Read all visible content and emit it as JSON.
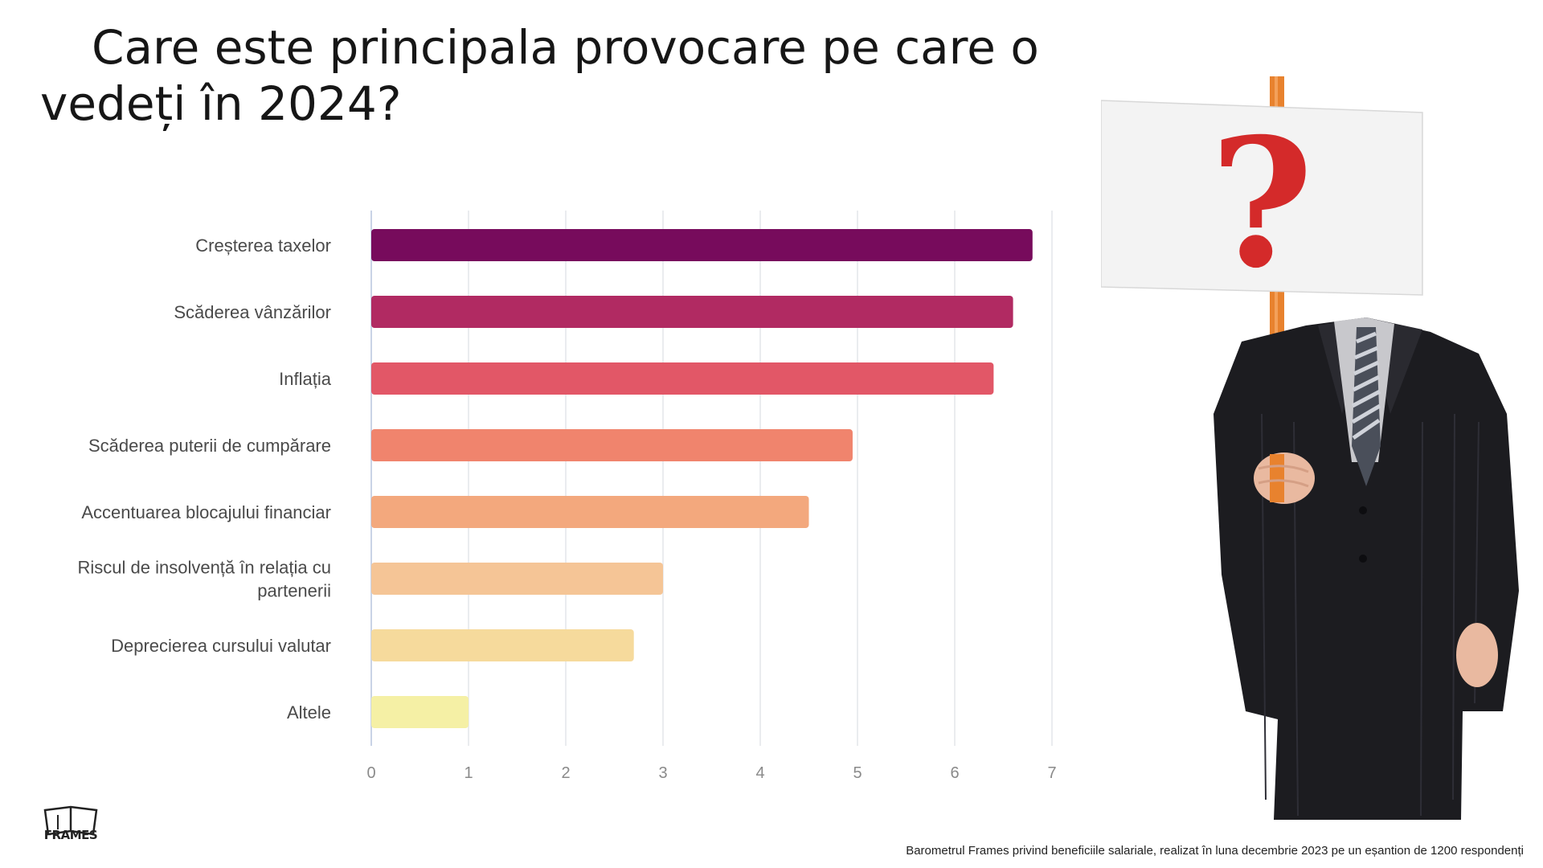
{
  "title": "Care este principala provocare pe care o vedeți în 2024?",
  "source_note": "Barometrul Frames privind beneficiile salariale, realizat în luna decembrie 2023 pe un eșantion de 1200 respondenți",
  "logo_text": "FRAMES",
  "illustration": {
    "description_icon": "man-holding-question-mark-sign",
    "sign_glyph": "?"
  },
  "colors": {
    "bars": [
      "#770b5c",
      "#b12a62",
      "#e25767",
      "#f0846d",
      "#f3a87d",
      "#f5c596",
      "#f6da9c",
      "#f5f0a5"
    ],
    "sign_question": "#d42a2a"
  },
  "chart_data": {
    "type": "bar",
    "orientation": "horizontal",
    "categories": [
      "Creșterea taxelor",
      "Scăderea vânzărilor",
      "Inflația",
      "Scăderea puterii de cumpărare",
      "Accentuarea blocajului financiar",
      "Riscul de insolvență în relația cu partenerii",
      "Deprecierea cursului valutar",
      "Altele"
    ],
    "category_lines": [
      [
        "Creșterea taxelor"
      ],
      [
        "Scăderea vânzărilor"
      ],
      [
        "Inflația"
      ],
      [
        "Scăderea puterii de cumpărare"
      ],
      [
        "Accentuarea blocajului financiar"
      ],
      [
        "Riscul de insolvență în relația cu",
        "partenerii"
      ],
      [
        "Deprecierea cursului valutar"
      ],
      [
        "Altele"
      ]
    ],
    "values": [
      6.8,
      6.6,
      6.4,
      4.95,
      4.5,
      3.0,
      2.7,
      1.0
    ],
    "xlim": [
      0,
      7
    ],
    "xticks": [
      "0",
      "1",
      "2",
      "3",
      "4",
      "5",
      "6",
      "7"
    ],
    "xlabel": "",
    "ylabel": "",
    "grid": true
  }
}
